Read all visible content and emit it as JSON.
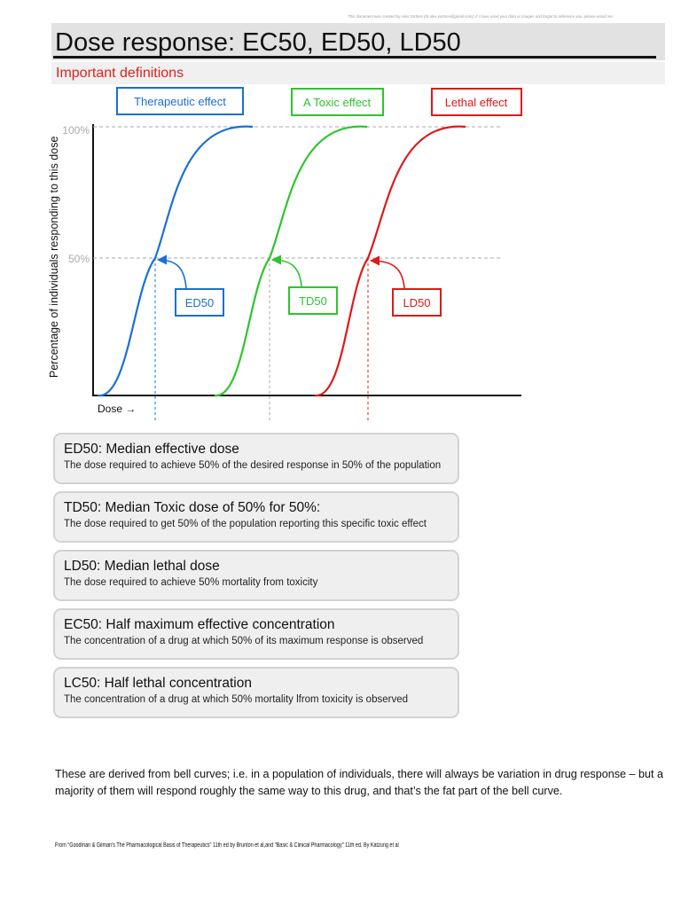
{
  "credit_line": "This document was created by Alex Yartsev (dr.alex.yartsev@gmail.com); if I have used your data or images and forgot to reference you, please email me.",
  "title": "Dose response: EC50, ED50, LD50",
  "subtitle": "Important definitions",
  "chart_data": {
    "type": "line",
    "ylabel": "Percentage of individuals responding to this dose",
    "xlabel": "Dose →",
    "y_ticks": [
      "100%",
      "50%"
    ],
    "series": [
      {
        "name": "Therapeutic effect",
        "midpoint_label": "ED50",
        "color": "#1a6fd6"
      },
      {
        "name": "A Toxic effect",
        "midpoint_label": "TD50",
        "color": "#2ec42e"
      },
      {
        "name": "Lethal effect",
        "midpoint_label": "LD50",
        "color": "#e01818"
      }
    ]
  },
  "definitions": [
    {
      "term": "ED50:  Median effective dose",
      "desc": "The dose required to achieve 50% of the desired response in 50% of the population"
    },
    {
      "term": "TD50:  Median Toxic dose of 50% for 50%:",
      "desc": "The dose required to get 50% of the population reporting this specific toxic effect"
    },
    {
      "term": "LD50:  Median lethal dose",
      "desc": "The dose required to achieve 50% mortality from toxicity"
    },
    {
      "term": "EC50:  Half maximum effective concentration",
      "desc": "The concentration of a drug at which 50%  of its maximum response is observed"
    },
    {
      "term": "LC50:  Half lethal concentration",
      "desc": "The concentration of a drug at which 50%  mortality lfrom toxicity is observed"
    }
  ],
  "paragraph": "These are derived from bell curves; i.e. in a population of individuals, there will always be variation in drug response – but a majority of them will respond roughly the same way to this drug, and that’s the fat part of the bell curve.",
  "source": "From \"Goodman & Gilman's The Pharmacological Basis of Therapeutics\" 11th ed by Brunton et al,and   \"Basic & Clinical Pharmacology\" 11th ed. By Katzung et al"
}
